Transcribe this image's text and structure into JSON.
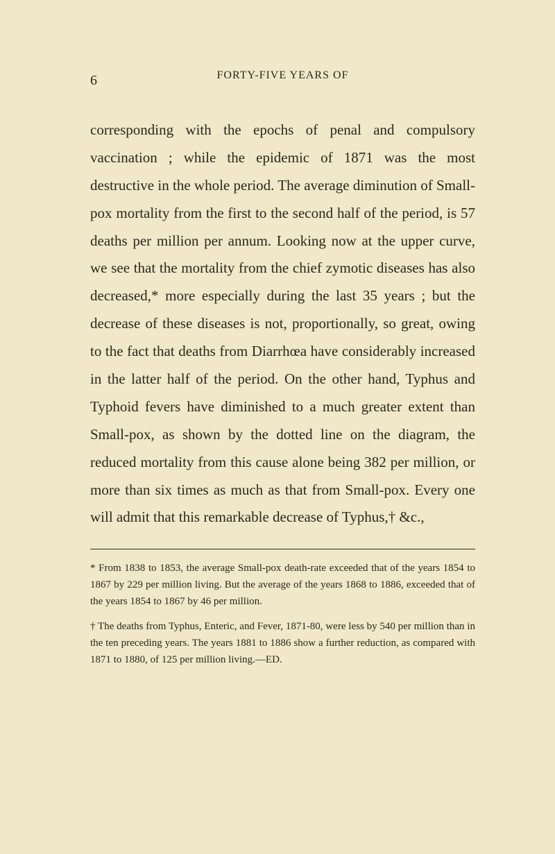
{
  "page": {
    "number": "6",
    "header": "FORTY-FIVE YEARS OF",
    "body": "corresponding with the epochs of penal and compulsory vaccination ; while the epidemic of 1871 was the most destructive in the whole period. The average diminution of Small-pox mortality from the first to the second half of the period, is 57 deaths per million per annum. Looking now at the upper curve, we see that the mortality from the chief zymotic diseases has also decreased,* more especially during the last 35 years ; but the decrease of these diseases is not, proportionally, so great, owing to the fact that deaths from Diarrhœa have considerably increased in the latter half of the period. On the other hand, Typhus and Typhoid fevers have diminished to a much greater extent than Small-pox, as shown by the dotted line on the diagram, the reduced mortality from this cause alone being 382 per million, or more than six times as much as that from Small-pox. Every one will admit that this remarkable decrease of Typhus,† &c.,",
    "footnote1": "* From 1838 to 1853, the average Small-pox death-rate exceeded that of the years 1854 to 1867 by 229 per million living. But the average of the years 1868 to 1886, exceeded that of the years 1854 to 1867 by 46 per million.",
    "footnote2": "† The deaths from Typhus, Enteric, and Fever, 1871-80, were less by 540 per million than in the ten preceding years. The years 1881 to 1886 show a further reduction, as compared with 1871 to 1880, of 125 per million living.—ED."
  },
  "colors": {
    "background": "#f0e8c8",
    "text": "#2a2820"
  },
  "typography": {
    "body_fontsize": 21,
    "header_fontsize": 16,
    "footnote_fontsize": 15,
    "line_height": 1.9
  }
}
